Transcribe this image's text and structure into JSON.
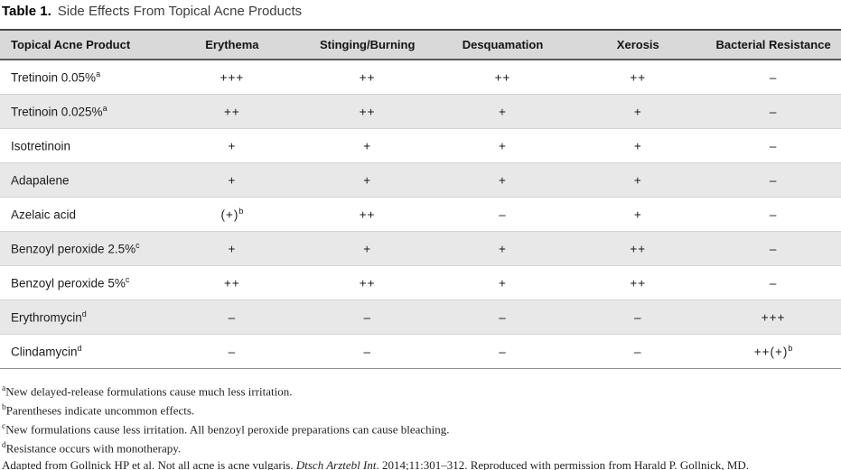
{
  "title": {
    "label": "Table 1.",
    "text": "Side Effects From Topical Acne Products"
  },
  "table": {
    "columns": [
      "Topical Acne Product",
      "Erythema",
      "Stinging/Burning",
      "Desquamation",
      "Xerosis",
      "Bacterial Resistance"
    ],
    "rows": [
      {
        "product": "Tretinoin 0.05%",
        "sup": "a",
        "values": [
          {
            "v": "+++",
            "s": ""
          },
          {
            "v": "++",
            "s": ""
          },
          {
            "v": "++",
            "s": ""
          },
          {
            "v": "++",
            "s": ""
          },
          {
            "v": "–",
            "s": ""
          }
        ]
      },
      {
        "product": "Tretinoin 0.025%",
        "sup": "a",
        "values": [
          {
            "v": "++",
            "s": ""
          },
          {
            "v": "++",
            "s": ""
          },
          {
            "v": "+",
            "s": ""
          },
          {
            "v": "+",
            "s": ""
          },
          {
            "v": "–",
            "s": ""
          }
        ]
      },
      {
        "product": "Isotretinoin",
        "sup": "",
        "values": [
          {
            "v": "+",
            "s": ""
          },
          {
            "v": "+",
            "s": ""
          },
          {
            "v": "+",
            "s": ""
          },
          {
            "v": "+",
            "s": ""
          },
          {
            "v": "–",
            "s": ""
          }
        ]
      },
      {
        "product": "Adapalene",
        "sup": "",
        "values": [
          {
            "v": "+",
            "s": ""
          },
          {
            "v": "+",
            "s": ""
          },
          {
            "v": "+",
            "s": ""
          },
          {
            "v": "+",
            "s": ""
          },
          {
            "v": "–",
            "s": ""
          }
        ]
      },
      {
        "product": "Azelaic acid",
        "sup": "",
        "values": [
          {
            "v": "(+)",
            "s": "b"
          },
          {
            "v": "++",
            "s": ""
          },
          {
            "v": "–",
            "s": ""
          },
          {
            "v": "+",
            "s": ""
          },
          {
            "v": "–",
            "s": ""
          }
        ]
      },
      {
        "product": "Benzoyl peroxide 2.5%",
        "sup": "c",
        "values": [
          {
            "v": "+",
            "s": ""
          },
          {
            "v": "+",
            "s": ""
          },
          {
            "v": "+",
            "s": ""
          },
          {
            "v": "++",
            "s": ""
          },
          {
            "v": "–",
            "s": ""
          }
        ]
      },
      {
        "product": "Benzoyl peroxide 5%",
        "sup": "c",
        "values": [
          {
            "v": "++",
            "s": ""
          },
          {
            "v": "++",
            "s": ""
          },
          {
            "v": "+",
            "s": ""
          },
          {
            "v": "++",
            "s": ""
          },
          {
            "v": "–",
            "s": ""
          }
        ]
      },
      {
        "product": "Erythromycin",
        "sup": "d",
        "values": [
          {
            "v": "–",
            "s": ""
          },
          {
            "v": "–",
            "s": ""
          },
          {
            "v": "–",
            "s": ""
          },
          {
            "v": "–",
            "s": ""
          },
          {
            "v": "+++",
            "s": ""
          }
        ]
      },
      {
        "product": "Clindamycin",
        "sup": "d",
        "values": [
          {
            "v": "–",
            "s": ""
          },
          {
            "v": "–",
            "s": ""
          },
          {
            "v": "–",
            "s": ""
          },
          {
            "v": "–",
            "s": ""
          },
          {
            "v": "++(+)",
            "s": "b"
          }
        ]
      }
    ]
  },
  "footnotes": [
    {
      "sup": "a",
      "text": "New delayed-release formulations cause much less irritation."
    },
    {
      "sup": "b",
      "text": "Parentheses indicate uncommon effects."
    },
    {
      "sup": "c",
      "text": "New formulations cause less irritation. All benzoyl peroxide preparations can cause bleaching."
    },
    {
      "sup": "d",
      "text": "Resistance occurs with monotherapy."
    },
    {
      "sup": "",
      "text": "Adapted from Gollnick HP et al. Not all acne is acne vulgaris. ",
      "italic": "Dtsch Arztebl Int",
      "text_after": ". 2014;11:301–312. Reproduced with permission from Harald P. Gollnick, MD."
    }
  ],
  "colors": {
    "header_bg": "#d9d9d9",
    "alt_row_bg": "#e8e8e8",
    "rule_dark": "#474747",
    "row_separator": "#d2d2d2",
    "table_bottom_rule": "#8f8f8f"
  }
}
